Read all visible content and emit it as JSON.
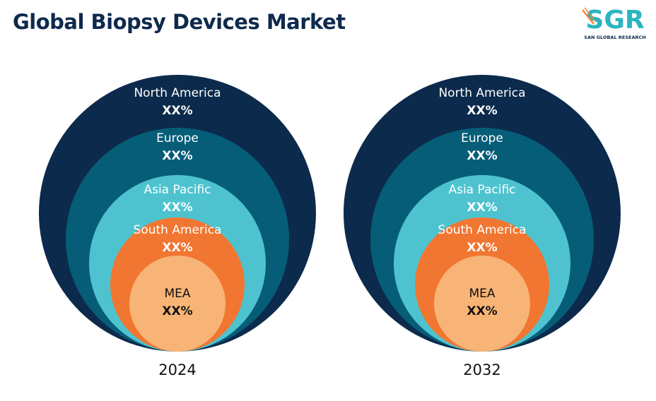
{
  "title": "Global Biopsy Devices Market",
  "logo": {
    "mark": "SGR",
    "tagline": "SAN GLOBAL RESEARCH"
  },
  "colors": {
    "north_america": "#0c2a4b",
    "europe": "#065d78",
    "asia_pacific": "#4ec3cf",
    "south_america": "#f17631",
    "mea": "#f8b476",
    "logo_teal": "#2ab5c0",
    "logo_orange": "#f08a3c"
  },
  "diagrams": [
    {
      "year": "2024",
      "segments": [
        {
          "name": "North America",
          "value": "XX%"
        },
        {
          "name": "Europe",
          "value": "XX%"
        },
        {
          "name": "Asia Pacific",
          "value": "XX%"
        },
        {
          "name": "South America",
          "value": "XX%"
        },
        {
          "name": "MEA",
          "value": "XX%"
        }
      ]
    },
    {
      "year": "2032",
      "segments": [
        {
          "name": "North America",
          "value": "XX%"
        },
        {
          "name": "Europe",
          "value": "XX%"
        },
        {
          "name": "Asia Pacific",
          "value": "XX%"
        },
        {
          "name": "South America",
          "value": "XX%"
        },
        {
          "name": "MEA",
          "value": "XX%"
        }
      ]
    }
  ]
}
